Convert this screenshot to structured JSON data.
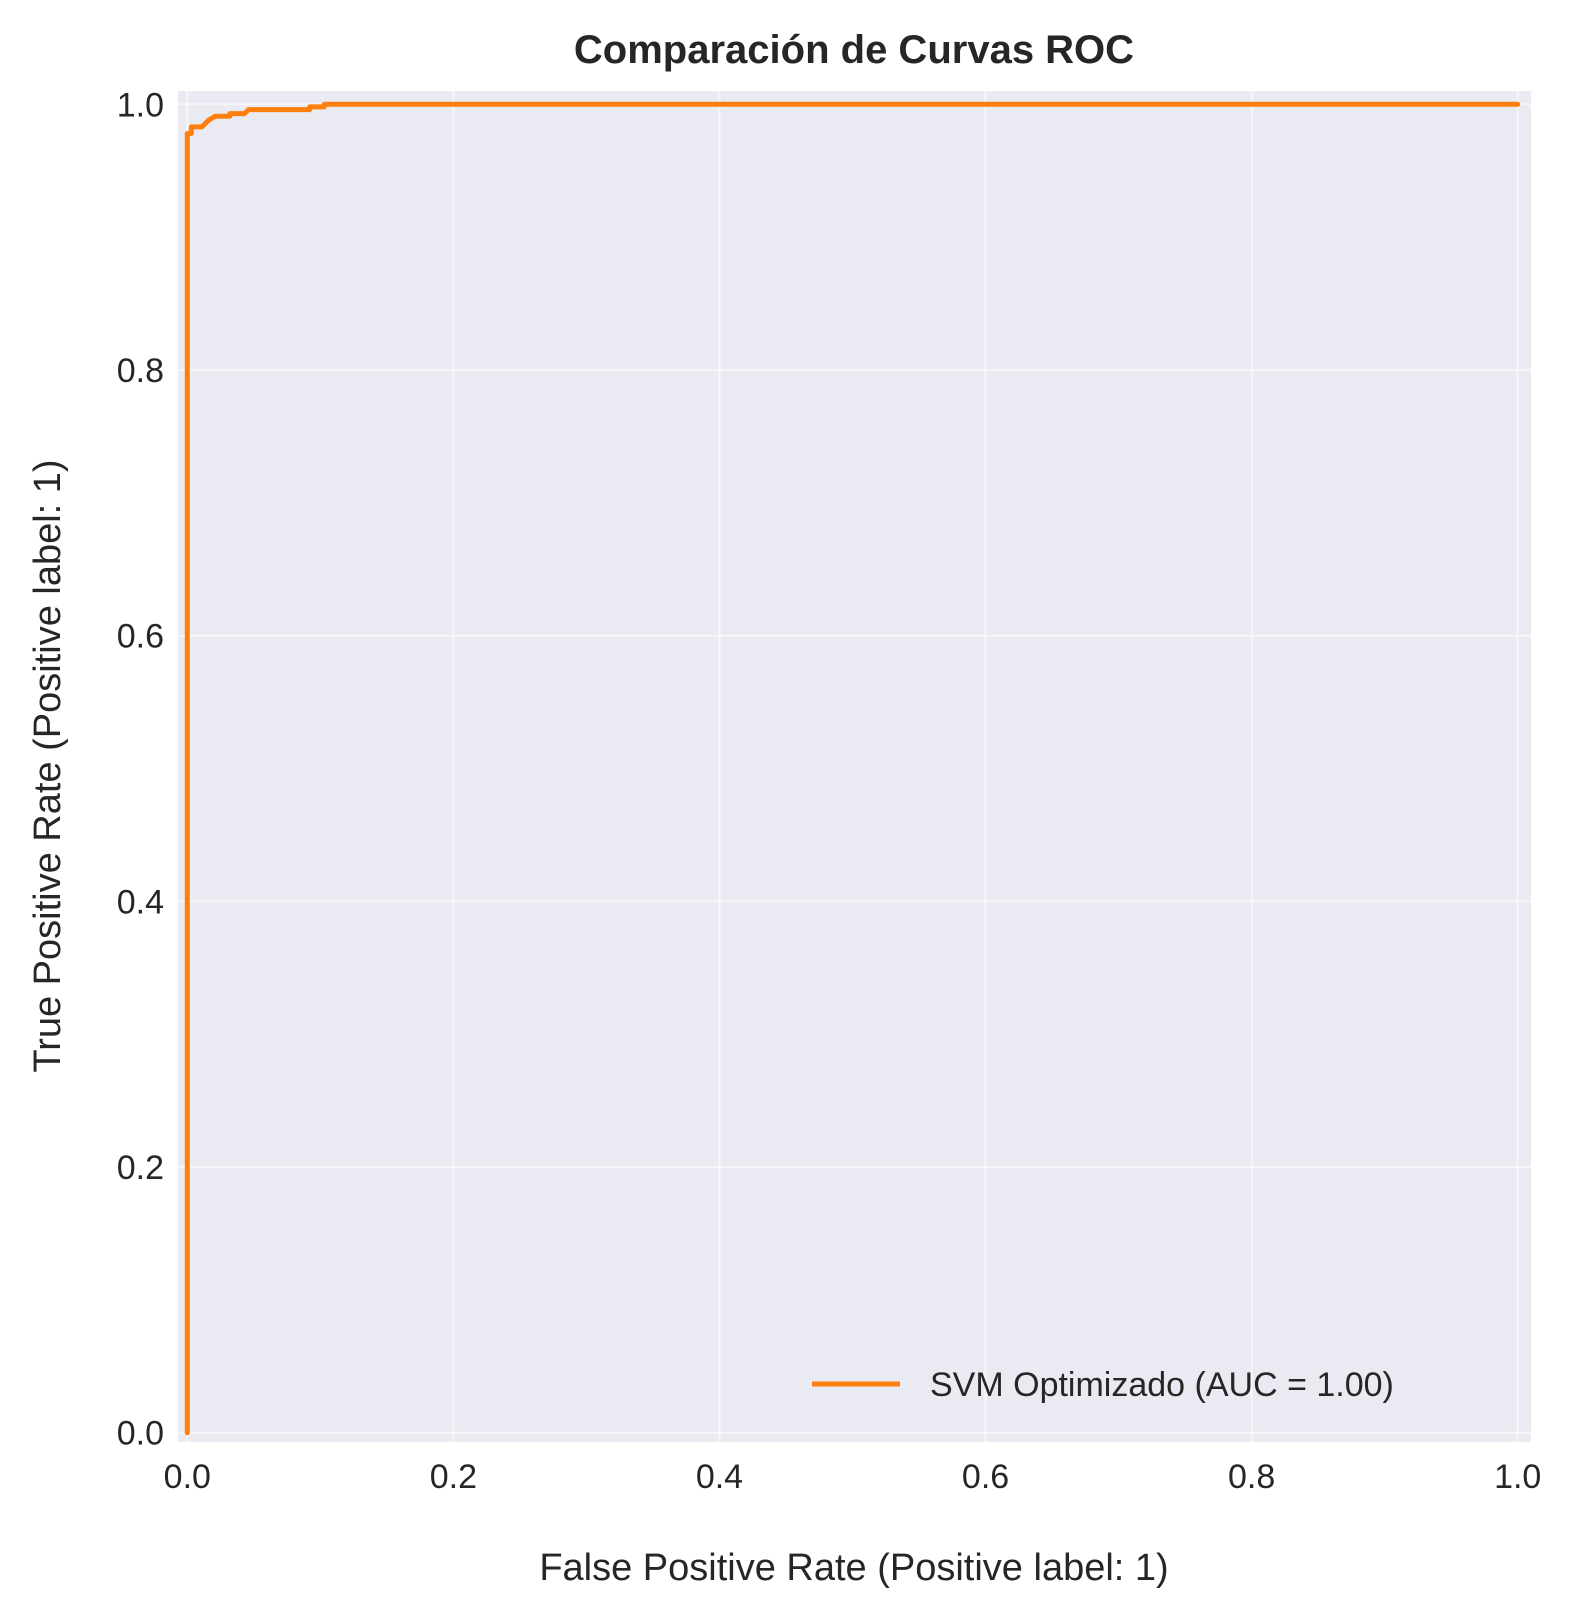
{
  "chart_data": {
    "type": "line",
    "title": "Comparación de Curvas ROC",
    "xlabel": "False Positive Rate (Positive label: 1)",
    "ylabel": "True Positive Rate (Positive label: 1)",
    "xlim": [
      -0.007,
      1.01
    ],
    "ylim": [
      -0.007,
      1.01
    ],
    "xticks": [
      0.0,
      0.2,
      0.4,
      0.6,
      0.8,
      1.0
    ],
    "yticks": [
      0.0,
      0.2,
      0.4,
      0.6,
      0.8,
      1.0
    ],
    "xtick_labels": [
      "0.0",
      "0.2",
      "0.4",
      "0.6",
      "0.8",
      "1.0"
    ],
    "ytick_labels": [
      "0.0",
      "0.2",
      "0.4",
      "0.6",
      "0.8",
      "1.0"
    ],
    "grid": true,
    "legend_position": "lower-right",
    "colors": {
      "plot_background": "#eaeaf2",
      "grid": "#ffffff",
      "series": "#ff7f0e"
    },
    "series": [
      {
        "name": "SVM Optimizado (AUC = 1.00)",
        "color": "#ff7f0e",
        "points": [
          [
            0.0,
            0.0
          ],
          [
            0.0,
            0.978
          ],
          [
            0.003,
            0.978
          ],
          [
            0.003,
            0.983
          ],
          [
            0.011,
            0.983
          ],
          [
            0.016,
            0.988
          ],
          [
            0.021,
            0.991
          ],
          [
            0.032,
            0.991
          ],
          [
            0.032,
            0.993
          ],
          [
            0.043,
            0.993
          ],
          [
            0.046,
            0.996
          ],
          [
            0.092,
            0.996
          ],
          [
            0.092,
            0.998
          ],
          [
            0.103,
            0.998
          ],
          [
            0.103,
            1.0
          ],
          [
            1.0,
            1.0
          ]
        ]
      }
    ]
  }
}
